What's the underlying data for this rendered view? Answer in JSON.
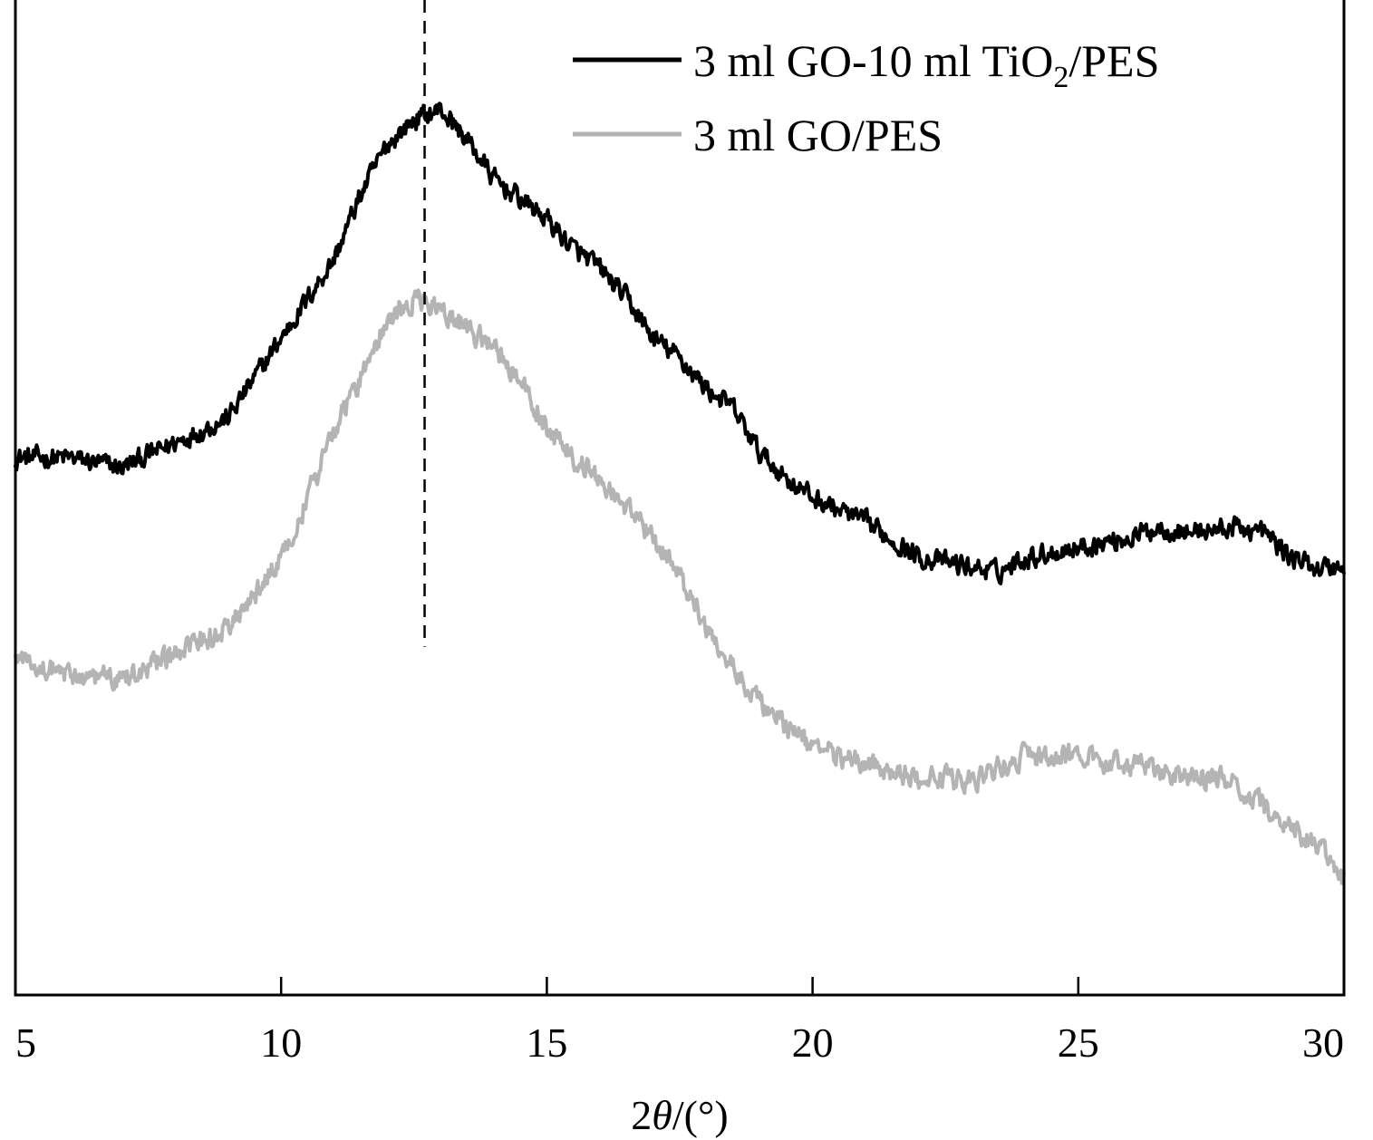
{
  "chart_data": {
    "type": "line",
    "title": "",
    "xlabel": {
      "prefix": "2",
      "symbol": "θ",
      "suffix": "/(°)"
    },
    "ylabel": "",
    "xlim": [
      5,
      30
    ],
    "ylim": [
      0,
      100
    ],
    "xticks": [
      "5",
      "10",
      "15",
      "20",
      "25",
      "30"
    ],
    "reference_line": {
      "x": 12.7,
      "style": "dashed",
      "y_from": 35,
      "y_to": 100
    },
    "legend": {
      "placement": "top-right",
      "entries": [
        {
          "series": "s1",
          "text_main": "3 ml GO-10 ml TiO",
          "text_sub": "2",
          "text_tail": "/PES"
        },
        {
          "series": "s2",
          "text_main": "3 ml GO/PES",
          "text_sub": "",
          "text_tail": ""
        }
      ]
    },
    "noise": {
      "step": 0.02,
      "s1_amplitude": 1.6,
      "s2_amplitude": 1.7
    },
    "series": [
      {
        "id": "s1",
        "name": "3 ml GO-10 ml TiO2/PES",
        "color": "#000000",
        "x": [
          5,
          6,
          7,
          8,
          9,
          9.5,
          10,
          10.5,
          11,
          11.5,
          12,
          12.5,
          13,
          13.5,
          14,
          14.5,
          15,
          15.5,
          16,
          16.5,
          17,
          17.5,
          18,
          18.5,
          19,
          19.5,
          20,
          21,
          22,
          23,
          23.5,
          24,
          25,
          26,
          26.5,
          27,
          28,
          28.5,
          29,
          29.5,
          30
        ],
        "values": [
          54,
          54,
          53,
          55.5,
          58,
          62,
          66,
          70,
          74,
          80.5,
          85.5,
          88,
          89,
          86,
          82,
          80,
          78,
          75,
          73,
          70,
          66,
          64,
          61,
          59,
          54.5,
          52,
          50,
          47.5,
          44,
          43,
          42.5,
          44,
          45,
          46,
          47,
          46.5,
          47,
          46.5,
          44,
          43,
          43
        ]
      },
      {
        "id": "s2",
        "name": "3 ml GO/PES",
        "color": "#b4b4b4",
        "x": [
          5,
          6,
          7,
          8,
          9,
          9.5,
          10,
          10.5,
          11,
          11.5,
          12,
          12.5,
          13,
          13.5,
          14,
          14.5,
          15,
          15.5,
          16,
          16.5,
          17,
          17.5,
          18,
          18.5,
          19,
          19.5,
          20,
          21,
          22,
          23,
          24,
          25,
          26,
          27,
          27.5,
          28,
          29,
          29.5,
          30
        ],
        "values": [
          34,
          32,
          32,
          34,
          37,
          40,
          44,
          50,
          57,
          62,
          68,
          70,
          69,
          67,
          65,
          62,
          57,
          54,
          52,
          49,
          46,
          42,
          37,
          33,
          29.5,
          27,
          25,
          23,
          22,
          21.5,
          24,
          24,
          23,
          22,
          22,
          21,
          17,
          15,
          11.5
        ]
      }
    ]
  }
}
